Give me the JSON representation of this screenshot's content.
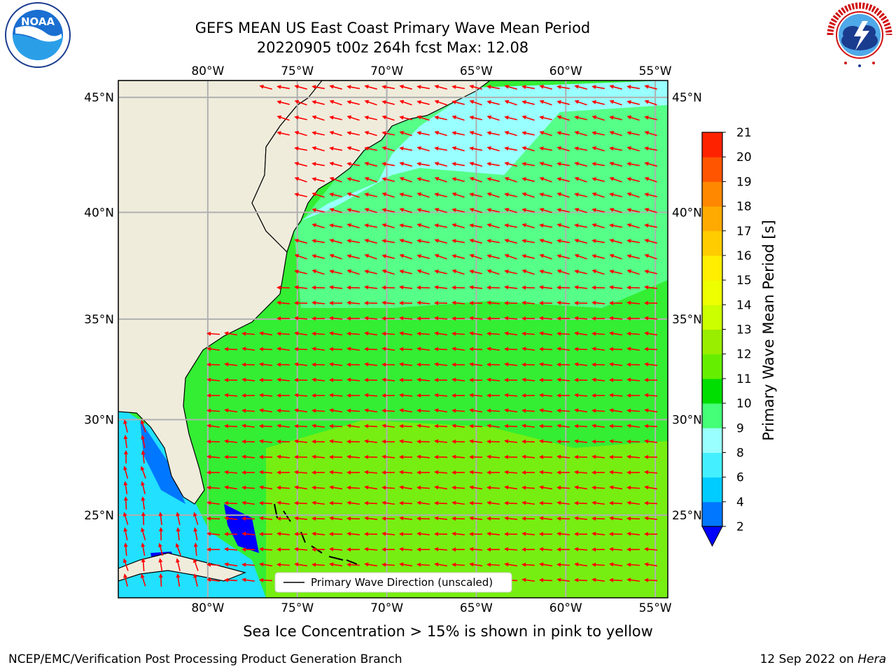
{
  "title_line1": "GEFS MEAN US East Coast Primary Wave Mean Period",
  "title_line2": "20220905 t00z 264h fcst   Max: 12.08",
  "logos": {
    "left": {
      "name": "noaa-logo",
      "text": "NOAA",
      "ring_text": "NATIONAL OCEANIC AND ATMOSPHERIC ADMINISTRATION · U.S. DEPARTMENT OF COMMERCE"
    },
    "right": {
      "name": "nws-logo",
      "ring_text": "NATIONAL WEATHER SERVICE"
    }
  },
  "map": {
    "lon_labels": [
      "80°W",
      "75°W",
      "70°W",
      "65°W",
      "60°W",
      "55°W"
    ],
    "lat_labels": [
      "45°N",
      "40°N",
      "35°N",
      "30°N",
      "25°N"
    ],
    "lon_values": [
      -80,
      -75,
      -70,
      -65,
      -60,
      -55
    ],
    "lat_values": [
      45,
      40,
      35,
      30,
      25
    ],
    "extent": {
      "lon_min": -85,
      "lon_max": -54.3,
      "lat_min": 20.5,
      "lat_max": 45.7
    },
    "land_color": "#efecdc",
    "arrow_color": "#ff0000",
    "legend_label": "Primary Wave Direction (unscaled)"
  },
  "colorbar": {
    "label": "Primary Wave Mean Period [s]",
    "levels": [
      2,
      4,
      6,
      8,
      9,
      10,
      11,
      12,
      13,
      14,
      15,
      16,
      17,
      18,
      19,
      20,
      21
    ],
    "tick_labels": [
      "2",
      "4",
      "6",
      "8",
      "9",
      "10",
      "11",
      "12",
      "13",
      "14",
      "15",
      "16",
      "17",
      "18",
      "19",
      "20",
      "21"
    ],
    "colors": [
      "#0077ff",
      "#00ccff",
      "#44f0ff",
      "#99ffff",
      "#44ff77",
      "#00dd00",
      "#66ee00",
      "#99ee00",
      "#ccff00",
      "#eeff00",
      "#ffee00",
      "#ffcc00",
      "#ffaa00",
      "#ff8800",
      "#ff5500",
      "#ff2200"
    ],
    "under_color": "#0000ff",
    "over_color": "#ff0000"
  },
  "ice_note": "Sea Ice Concentration > 15% is shown in pink to yellow",
  "footer_left": "NCEP/EMC/Verification Post Processing Product Generation Branch",
  "footer_date": "12 Sep 2022 on ",
  "footer_machine": "Hera"
}
